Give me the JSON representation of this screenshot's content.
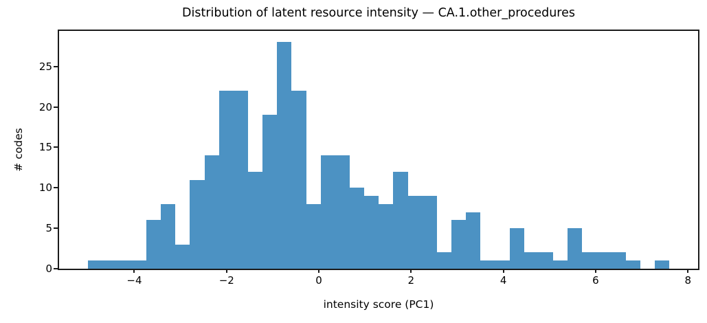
{
  "figure": {
    "title": "Distribution of latent resource intensity — CA.1.other_procedures",
    "xlabel": "intensity score (PC1)",
    "ylabel": "# codes"
  },
  "chart_data": {
    "type": "bar",
    "subtype": "histogram",
    "title": "Distribution of latent resource intensity — CA.1.other_procedures",
    "xlabel": "intensity score (PC1)",
    "ylabel": "# codes",
    "bin_start": -5.0,
    "bin_width": 0.315,
    "counts": [
      1,
      1,
      1,
      1,
      6,
      8,
      3,
      11,
      14,
      22,
      22,
      12,
      19,
      28,
      22,
      8,
      14,
      14,
      10,
      9,
      8,
      12,
      9,
      9,
      2,
      6,
      7,
      1,
      1,
      5,
      2,
      2,
      1,
      5,
      2,
      2,
      2,
      1,
      0,
      1
    ],
    "total_codes": 304,
    "xlim": [
      -5.63,
      8.22
    ],
    "ylim": [
      0,
      29.4
    ],
    "xtick_values": [
      -4,
      -2,
      0,
      2,
      4,
      6,
      8
    ],
    "xtick_labels": [
      "−4",
      "−2",
      "0",
      "2",
      "4",
      "6",
      "8"
    ],
    "ytick_values": [
      0,
      5,
      10,
      15,
      20,
      25
    ],
    "ytick_labels": [
      "0",
      "5",
      "10",
      "15",
      "20",
      "25"
    ],
    "bar_color": "#4C92C3",
    "axis_color": "#1a1a1a",
    "text_color": "#000000",
    "background_color": "#ffffff",
    "grid": false,
    "legend_position": "none"
  }
}
